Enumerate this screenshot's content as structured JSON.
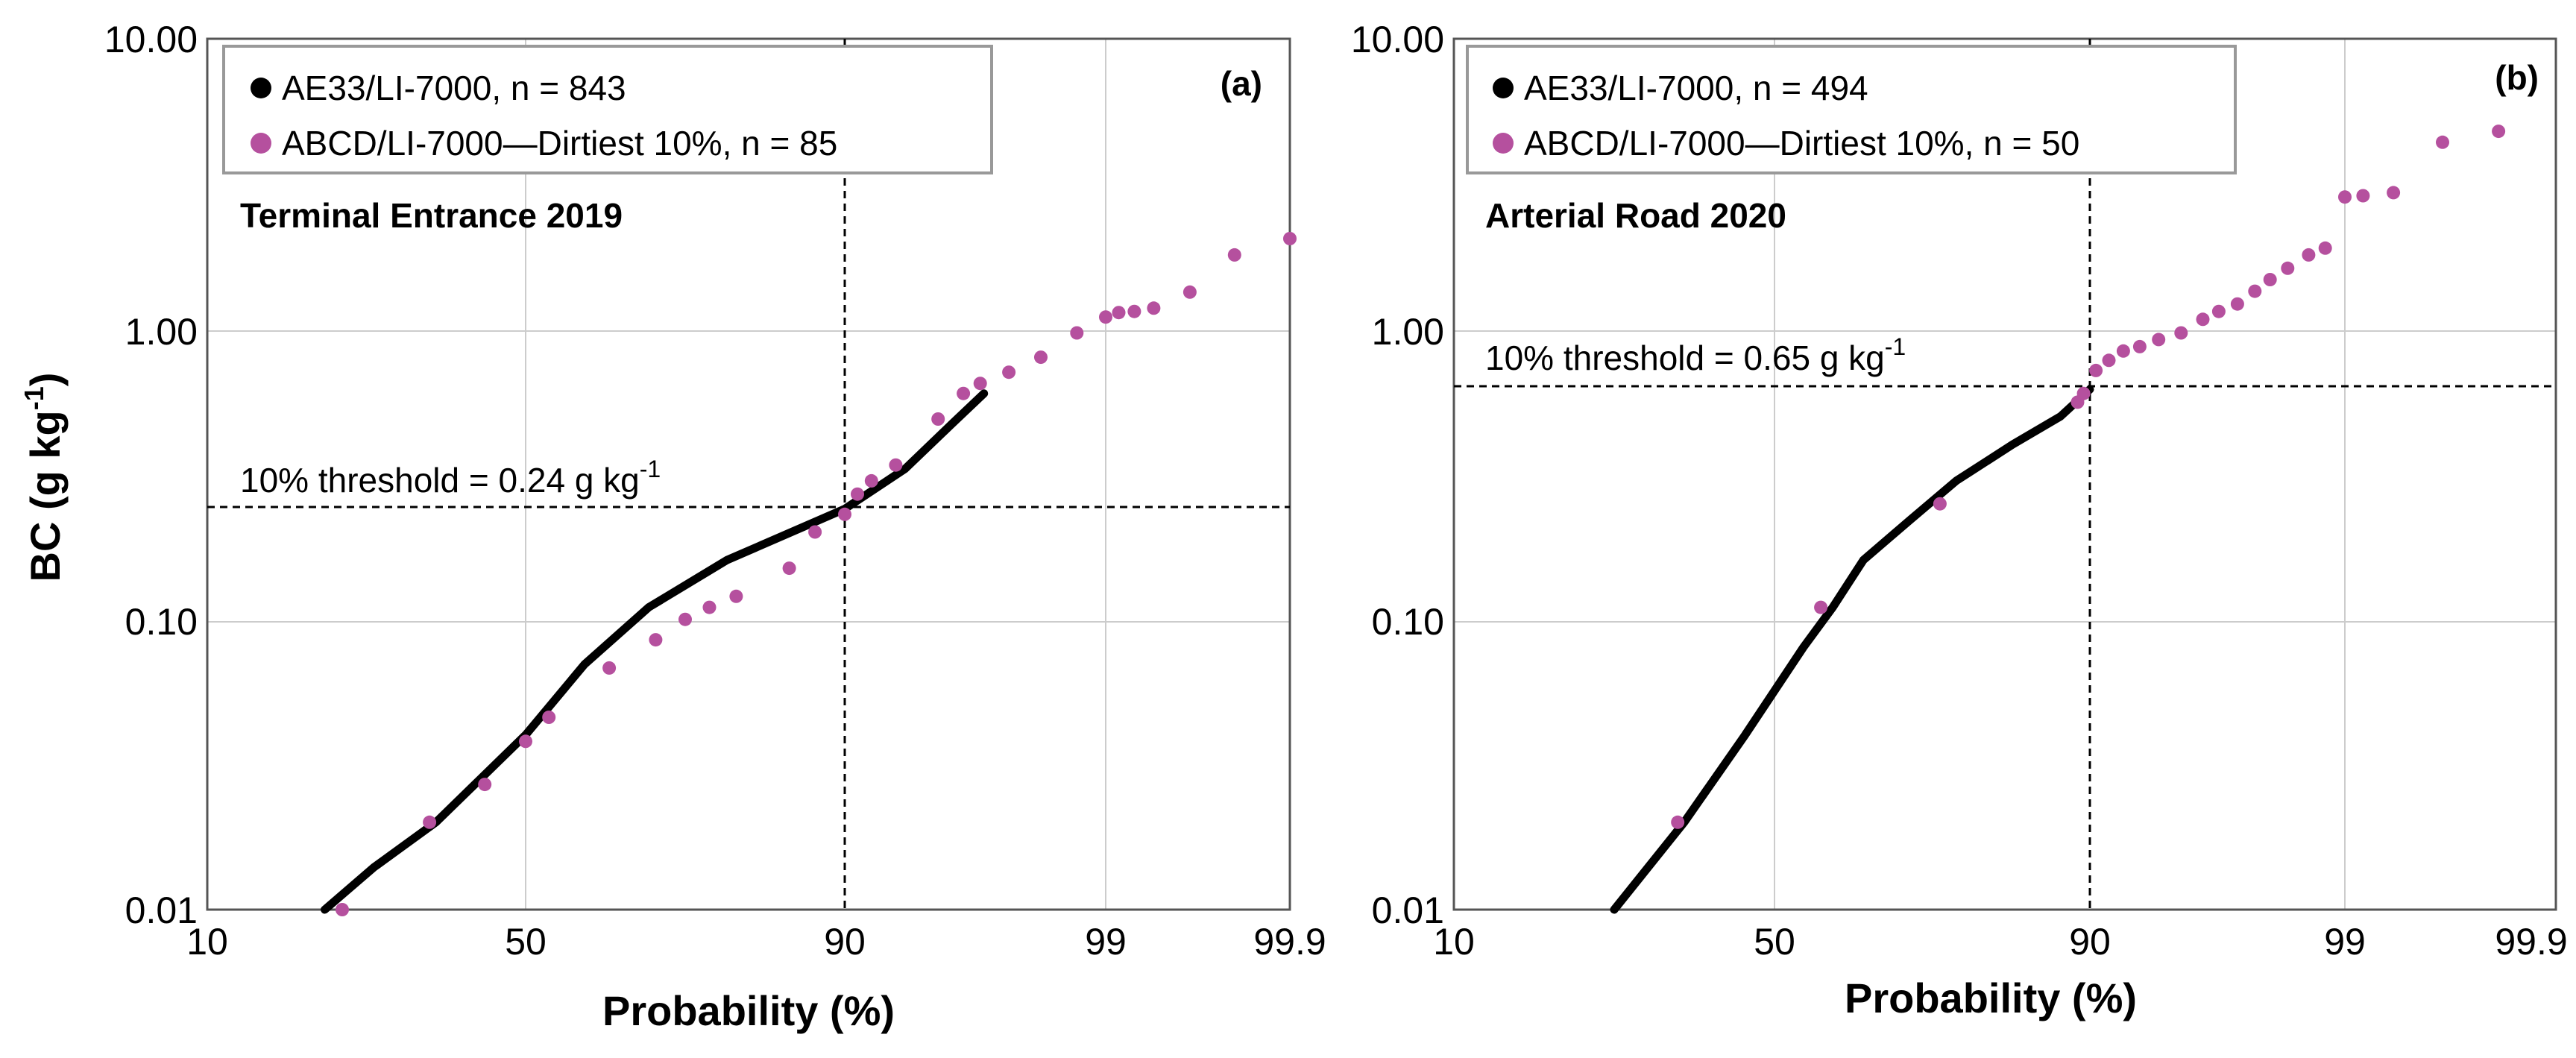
{
  "chart_data": [
    {
      "type": "scatter",
      "panel_label": "(a)",
      "title": "Terminal Entrance 2019",
      "xlabel": "Probability (%)",
      "ylabel": "BC (g kg-1)",
      "ylabel_display": {
        "base": "BC (g kg",
        "sup": "-1",
        "tail": ")"
      },
      "y_scale": "log",
      "x_scale": "probability",
      "ylim": [
        0.01,
        10
      ],
      "xlim": [
        10,
        99.9
      ],
      "y_ticks": [
        "0.01",
        "0.10",
        "1.00",
        "10.00"
      ],
      "x_ticks": [
        "10",
        "50",
        "90",
        "99",
        "99.9"
      ],
      "grid": true,
      "legend": {
        "position": "top-left",
        "entries": [
          {
            "label": "AE33/LI-7000, n = 843",
            "color": "#000000"
          },
          {
            "label": "ABCD/LI-7000—Dirtiest 10%, n = 85",
            "color": "#b5509e"
          }
        ]
      },
      "threshold": {
        "label": "10% threshold = 0.24 g kg",
        "sup": "-1",
        "value": 0.24,
        "prob": 90
      },
      "series": [
        {
          "name": "AE33/LI-7000",
          "color": "#000000",
          "curve": [
            [
              20,
              0.01
            ],
            [
              26,
              0.014
            ],
            [
              35,
              0.02
            ],
            [
              50,
              0.04
            ],
            [
              60,
              0.07
            ],
            [
              70,
              0.11
            ],
            [
              80,
              0.16
            ],
            [
              90,
              0.24
            ],
            [
              94,
              0.33
            ],
            [
              96,
              0.47
            ],
            [
              97,
              0.6
            ]
          ]
        },
        {
          "name": "ABCD/LI-7000—Dirtiest 10%",
          "color": "#b5509e",
          "points": [
            [
              22,
              0.01
            ],
            [
              34,
              0.02
            ],
            [
              43,
              0.027
            ],
            [
              50,
              0.038
            ],
            [
              54,
              0.046
            ],
            [
              64,
              0.068
            ],
            [
              71,
              0.085
            ],
            [
              75,
              0.1
            ],
            [
              78,
              0.11
            ],
            [
              81,
              0.12
            ],
            [
              86,
              0.15
            ],
            [
              88,
              0.2
            ],
            [
              90,
              0.23
            ],
            [
              91,
              0.27
            ],
            [
              92,
              0.3
            ],
            [
              93.5,
              0.34
            ],
            [
              95.5,
              0.49
            ],
            [
              96.4,
              0.6
            ],
            [
              96.9,
              0.65
            ],
            [
              97.6,
              0.71
            ],
            [
              98.2,
              0.8
            ],
            [
              98.7,
              0.97
            ],
            [
              99.0,
              1.1
            ],
            [
              99.15,
              1.14
            ],
            [
              99.3,
              1.15
            ],
            [
              99.45,
              1.18
            ],
            [
              99.65,
              1.34
            ],
            [
              99.8,
              1.8
            ],
            [
              99.9,
              2.05
            ]
          ]
        }
      ]
    },
    {
      "type": "scatter",
      "panel_label": "(b)",
      "title": "Arterial Road 2020",
      "xlabel": "Probability (%)",
      "y_scale": "log",
      "x_scale": "probability",
      "ylim": [
        0.01,
        10
      ],
      "xlim": [
        10,
        99.9
      ],
      "y_ticks": [
        "0.01",
        "0.10",
        "1.00",
        "10.00"
      ],
      "x_ticks": [
        "10",
        "50",
        "90",
        "99",
        "99.9"
      ],
      "grid": true,
      "legend": {
        "position": "top-left",
        "entries": [
          {
            "label": "AE33/LI-7000, n = 494",
            "color": "#000000"
          },
          {
            "label": "ABCD/LI-7000—Dirtiest 10%, n = 50",
            "color": "#b5509e"
          }
        ]
      },
      "threshold": {
        "label": "10% threshold = 0.65 g kg",
        "sup": "-1",
        "value": 0.65,
        "prob": 90
      },
      "series": [
        {
          "name": "AE33/LI-7000",
          "color": "#000000",
          "curve": [
            [
              25,
              0.01
            ],
            [
              35,
              0.02
            ],
            [
              45,
              0.04
            ],
            [
              55,
              0.08
            ],
            [
              60,
              0.11
            ],
            [
              65,
              0.16
            ],
            [
              72,
              0.22
            ],
            [
              78,
              0.3
            ],
            [
              84,
              0.4
            ],
            [
              88,
              0.5
            ],
            [
              90,
              0.62
            ]
          ]
        },
        {
          "name": "ABCD/LI-7000—Dirtiest 10%",
          "color": "#b5509e",
          "points": [
            [
              34,
              0.02
            ],
            [
              58,
              0.11
            ],
            [
              76,
              0.25
            ],
            [
              89.2,
              0.56
            ],
            [
              89.6,
              0.6
            ],
            [
              90.5,
              0.72
            ],
            [
              91.5,
              0.78
            ],
            [
              92.5,
              0.84
            ],
            [
              93.5,
              0.87
            ],
            [
              94.5,
              0.92
            ],
            [
              95.5,
              0.97
            ],
            [
              96.3,
              1.08
            ],
            [
              96.8,
              1.15
            ],
            [
              97.3,
              1.22
            ],
            [
              97.7,
              1.35
            ],
            [
              98.0,
              1.48
            ],
            [
              98.3,
              1.62
            ],
            [
              98.6,
              1.8
            ],
            [
              98.8,
              1.9
            ],
            [
              99.0,
              2.85
            ],
            [
              99.2,
              2.88
            ],
            [
              99.45,
              2.95
            ],
            [
              99.7,
              4.4
            ],
            [
              99.85,
              4.8
            ]
          ]
        }
      ]
    }
  ]
}
